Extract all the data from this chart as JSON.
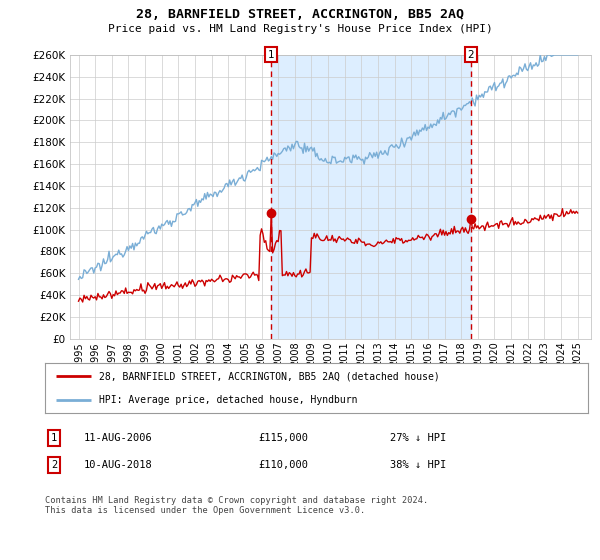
{
  "title": "28, BARNFIELD STREET, ACCRINGTON, BB5 2AQ",
  "subtitle": "Price paid vs. HM Land Registry's House Price Index (HPI)",
  "ylim": [
    0,
    260000
  ],
  "yticks": [
    0,
    20000,
    40000,
    60000,
    80000,
    100000,
    120000,
    140000,
    160000,
    180000,
    200000,
    220000,
    240000,
    260000
  ],
  "hpi_color": "#7aaed6",
  "price_color": "#cc0000",
  "vline_color": "#cc0000",
  "shade_color": "#ddeeff",
  "legend_entries": [
    "28, BARNFIELD STREET, ACCRINGTON, BB5 2AQ (detached house)",
    "HPI: Average price, detached house, Hyndburn"
  ],
  "annotation1": [
    "1",
    "11-AUG-2006",
    "£115,000",
    "27% ↓ HPI"
  ],
  "annotation2": [
    "2",
    "10-AUG-2018",
    "£110,000",
    "38% ↓ HPI"
  ],
  "footer": "Contains HM Land Registry data © Crown copyright and database right 2024.\nThis data is licensed under the Open Government Licence v3.0.",
  "background_color": "#ffffff",
  "grid_color": "#cccccc",
  "year_start": 1995,
  "year_end": 2025,
  "purchase_year1": 2006.62,
  "purchase_year2": 2018.62,
  "purchase_price1": 115000,
  "purchase_price2": 110000
}
